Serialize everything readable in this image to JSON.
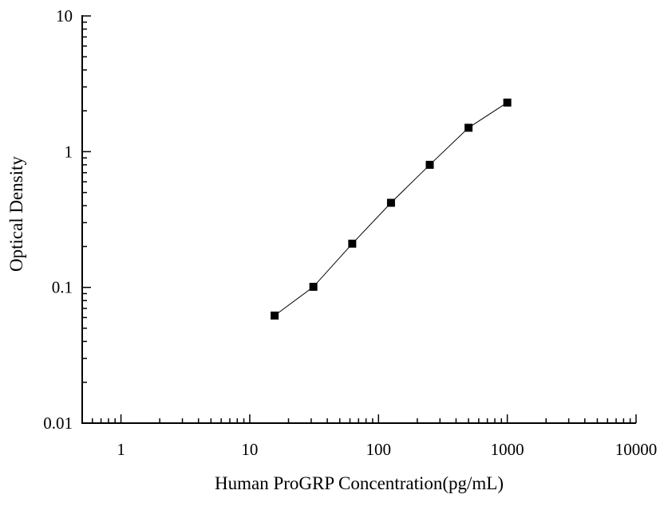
{
  "chart_data": {
    "type": "scatter",
    "title": "",
    "xlabel": "Human ProGRP Concentration(pg/mL)",
    "ylabel": "Optical Density",
    "x_scale": "log",
    "y_scale": "log",
    "xlim": [
      0.5,
      10000
    ],
    "ylim": [
      0.01,
      10
    ],
    "x_ticks": [
      {
        "value": 1,
        "label": "1"
      },
      {
        "value": 10,
        "label": "10"
      },
      {
        "value": 100,
        "label": "100"
      },
      {
        "value": 1000,
        "label": "1000"
      },
      {
        "value": 10000,
        "label": "10000"
      }
    ],
    "y_ticks": [
      {
        "value": 0.01,
        "label": "0.01"
      },
      {
        "value": 0.1,
        "label": "0.1"
      },
      {
        "value": 1,
        "label": "1"
      },
      {
        "value": 10,
        "label": "10"
      }
    ],
    "series": [
      {
        "x": [
          15.6,
          31.2,
          62.5,
          125,
          250,
          500,
          1000
        ],
        "y": [
          0.062,
          0.101,
          0.21,
          0.42,
          0.8,
          1.5,
          2.3
        ],
        "marker": "square",
        "line": true
      }
    ],
    "grid": false,
    "legend": "none",
    "colors": {
      "marker": "#000000",
      "line": "#000000",
      "axis": "#000000"
    }
  }
}
